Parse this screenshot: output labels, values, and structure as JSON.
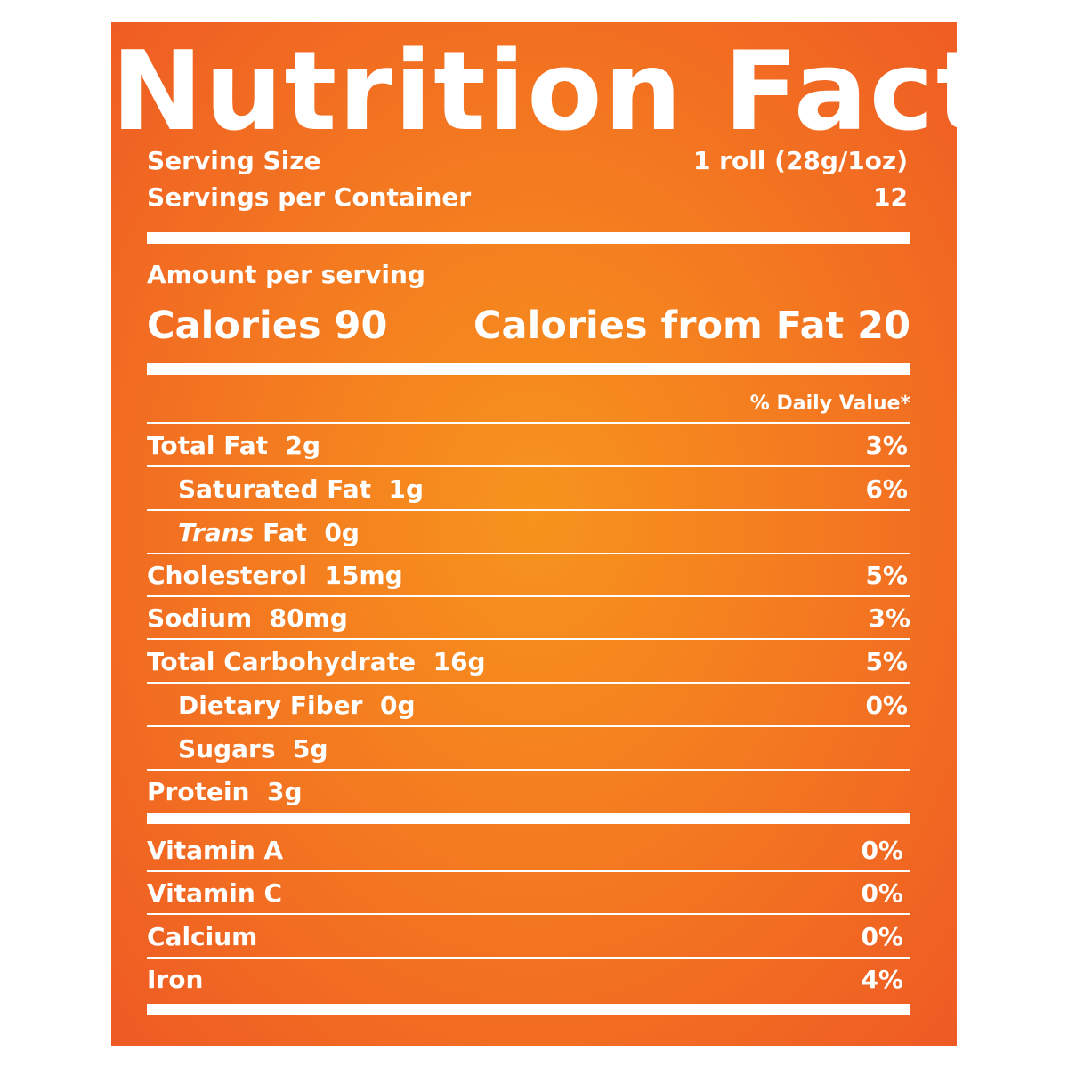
{
  "title": "Nutrition Facts",
  "serving": {
    "size_label": "Serving Size",
    "size_value": "1 roll (28g/1oz)",
    "per_container_label": "Servings per Container",
    "per_container_value": "12"
  },
  "calories": {
    "amount_label": "Amount per serving",
    "calories_text": "Calories 90",
    "from_fat_text": "Calories from Fat 20"
  },
  "daily_value_header": "% Daily Value*",
  "nutrients": [
    {
      "name": "Total Fat",
      "amount": "2g",
      "dv": "3%"
    },
    {
      "name": "Saturated Fat",
      "amount": "1g",
      "dv": "6%"
    },
    {
      "name_italic": "Trans",
      "name": "Fat",
      "amount": "0g"
    },
    {
      "name": "Cholesterol",
      "amount": "15mg",
      "dv": "5%"
    },
    {
      "name": "Sodium",
      "amount": "80mg",
      "dv": "3%"
    },
    {
      "name": "Total Carbohydrate",
      "amount": "16g",
      "dv": "5%"
    },
    {
      "name": "Dietary Fiber",
      "amount": "0g",
      "dv": "0%"
    },
    {
      "name": "Sugars",
      "amount": "5g"
    },
    {
      "name": "Protein",
      "amount": "3g"
    }
  ],
  "vitamins": [
    {
      "name": "Vitamin A",
      "dv": "0%"
    },
    {
      "name": "Vitamin C",
      "dv": "0%"
    },
    {
      "name": "Calcium",
      "dv": "0%"
    },
    {
      "name": "Iron",
      "dv": "4%"
    }
  ],
  "colors": {
    "panel_center": "#f7941d",
    "panel_edge": "#ef5a24",
    "text": "#ffffff"
  }
}
